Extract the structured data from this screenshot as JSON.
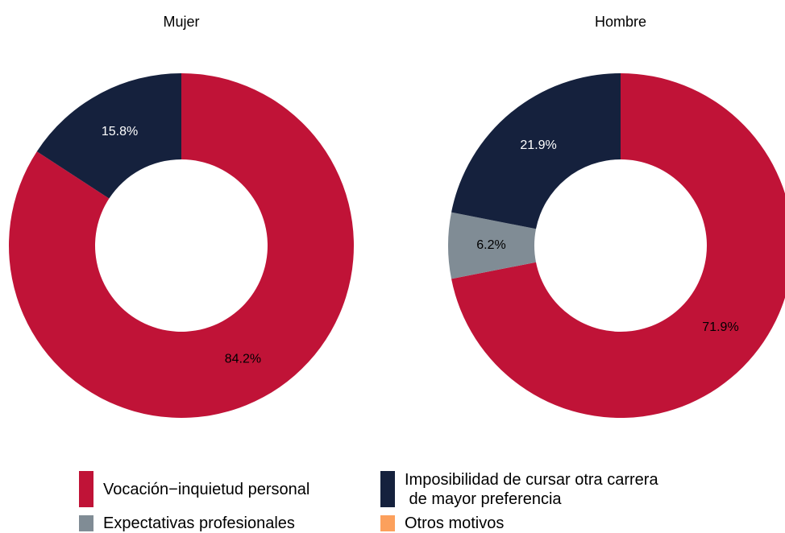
{
  "chart_data": [
    {
      "type": "pie",
      "title": "Mujer",
      "categories": [
        "Vocación−inquietud personal",
        "Imposibilidad de cursar otra carrera\n de mayor preferencia"
      ],
      "values": [
        84.2,
        15.8
      ],
      "value_labels": [
        "84.2%",
        "15.8%"
      ],
      "colors": [
        "#c01337",
        "#15213d"
      ]
    },
    {
      "type": "pie",
      "title": "Hombre",
      "categories": [
        "Vocación−inquietud personal",
        "Expectativas profesionales",
        "Imposibilidad de cursar otra carrera\n de mayor preferencia"
      ],
      "values": [
        71.9,
        6.2,
        21.9
      ],
      "value_labels": [
        "71.9%",
        "6.2%",
        "21.9%"
      ],
      "colors": [
        "#c01337",
        "#808c95",
        "#15213d"
      ]
    }
  ],
  "legend": [
    {
      "name": "Vocación−inquietud personal",
      "color": "#c01337"
    },
    {
      "name": "Imposibilidad de cursar otra carrera\n de mayor preferencia",
      "color": "#15213d"
    },
    {
      "name": "Expectativas profesionales",
      "color": "#808c95"
    },
    {
      "name": "Otros motivos",
      "color": "#fca05c"
    }
  ]
}
